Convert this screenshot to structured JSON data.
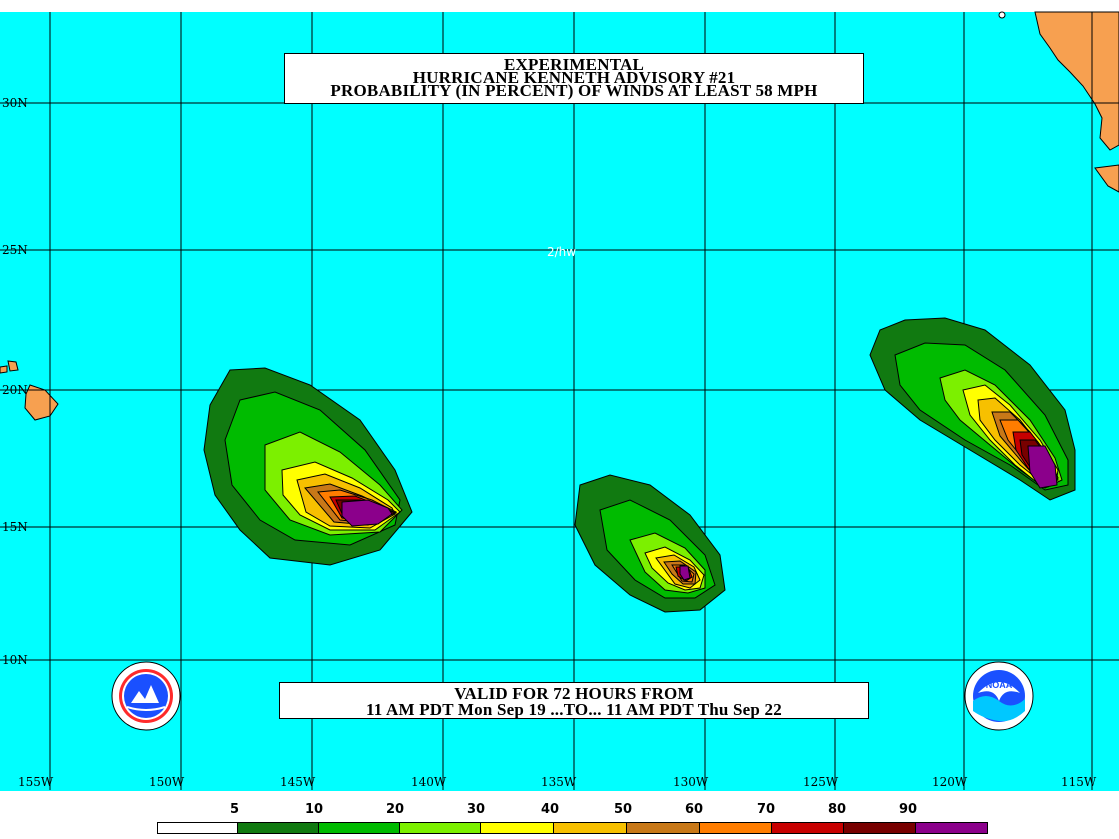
{
  "title": {
    "line1": "EXPERIMENTAL",
    "line2": "HURRICANE KENNETH ADVISORY #21",
    "line3": "PROBABILITY (IN PERCENT) OF WINDS AT LEAST 58 MPH"
  },
  "valid": {
    "line1": "VALID FOR 72 HOURS FROM",
    "line2": "11 AM PDT Mon Sep 19 ...TO... 11 AM PDT Thu Sep 22"
  },
  "map_note": "2/hw",
  "lat_labels": [
    "30N",
    "25N",
    "20N",
    "15N",
    "10N"
  ],
  "lon_labels": [
    "155W",
    "150W",
    "145W",
    "140W",
    "135W",
    "130W",
    "125W",
    "120W",
    "115W"
  ],
  "legend": {
    "labels": [
      "5",
      "10",
      "20",
      "30",
      "40",
      "50",
      "60",
      "70",
      "80",
      "90"
    ],
    "colors": [
      "#ffffff",
      "#117a11",
      "#00bb00",
      "#7cf000",
      "#ffff00",
      "#f7c000",
      "#c87818",
      "#ff7d00",
      "#c80000",
      "#780000",
      "#8b008b"
    ]
  },
  "colors": {
    "ocean": "#00ffff",
    "land": "#f7a050",
    "grid": "#000000"
  },
  "logos": [
    "nws-logo",
    "noaa-logo"
  ]
}
